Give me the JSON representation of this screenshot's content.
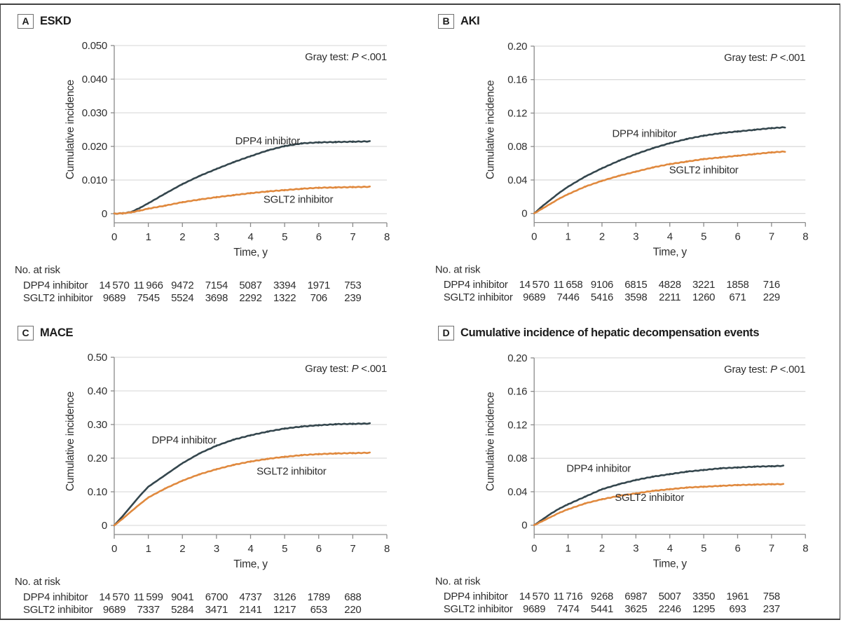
{
  "figure": {
    "frame_color": "#414141",
    "grid_color": "#d4d4d4",
    "axis_color": "#8a8a8a",
    "text_color": "#2e2e2e",
    "dpp4_color": "#34464d",
    "sglt2_color": "#e0893e"
  },
  "chart_data": [
    {
      "type": "line",
      "label": "A",
      "title": "ESKD",
      "annotation": {
        "lead": "Gray test: ",
        "italic": "P",
        "tail": " <.001"
      },
      "x_axis": {
        "label": "Time, y",
        "min": 0,
        "max": 8,
        "ticks": [
          "0",
          "1",
          "2",
          "3",
          "4",
          "5",
          "6",
          "7",
          "8"
        ]
      },
      "y_axis": {
        "label": "Cumulative incidence",
        "min": 0,
        "max": 0.05,
        "tick_labels": [
          "0",
          "0.010",
          "0.020",
          "0.030",
          "0.040",
          "0.050"
        ]
      },
      "series": [
        {
          "name": "DPP4 inhibitor",
          "color": "#34464d",
          "label_t": 4.5,
          "label_v": 0.0206,
          "t": [
            0,
            0.25,
            0.5,
            0.75,
            1,
            1.5,
            2,
            2.5,
            3,
            3.5,
            4,
            4.5,
            5,
            5.5,
            6,
            6.5,
            7,
            7.5
          ],
          "v": [
            0,
            0.0001,
            0.0005,
            0.0017,
            0.0031,
            0.006,
            0.0088,
            0.0112,
            0.0133,
            0.0153,
            0.0171,
            0.0188,
            0.0201,
            0.0209,
            0.0212,
            0.0213,
            0.0214,
            0.0215
          ]
        },
        {
          "name": "SGLT2 inhibitor",
          "color": "#e0893e",
          "label_t": 5.4,
          "label_v": 0.0032,
          "t": [
            0,
            0.25,
            0.5,
            0.75,
            1,
            1.5,
            2,
            2.5,
            3,
            3.5,
            4,
            4.5,
            5,
            5.5,
            6,
            6.5,
            7,
            7.5
          ],
          "v": [
            0,
            0.0001,
            0.0004,
            0.0009,
            0.0015,
            0.0024,
            0.0034,
            0.0042,
            0.0049,
            0.0055,
            0.0061,
            0.0066,
            0.007,
            0.0074,
            0.0077,
            0.0078,
            0.0079,
            0.008
          ]
        }
      ],
      "at_risk": {
        "title": "No. at risk",
        "rows": [
          {
            "label": "DPP4 inhibitor",
            "values": [
              "14 570",
              "11 966",
              "9472",
              "7154",
              "5087",
              "3394",
              "1971",
              "753"
            ]
          },
          {
            "label": "SGLT2 inhibitor",
            "values": [
              "9689",
              "7545",
              "5524",
              "3698",
              "2292",
              "1322",
              "706",
              "239"
            ]
          }
        ]
      }
    },
    {
      "type": "line",
      "label": "B",
      "title": "AKI",
      "annotation": {
        "lead": "Gray test: ",
        "italic": "P",
        "tail": " <.001"
      },
      "x_axis": {
        "label": "Time, y",
        "min": 0,
        "max": 8,
        "ticks": [
          "0",
          "1",
          "2",
          "3",
          "4",
          "5",
          "6",
          "7",
          "8"
        ]
      },
      "y_axis": {
        "label": "Cumulative incidence",
        "min": 0,
        "max": 0.2,
        "tick_labels": [
          "0",
          "0.04",
          "0.08",
          "0.12",
          "0.16",
          "0.20"
        ]
      },
      "series": [
        {
          "name": "DPP4 inhibitor",
          "color": "#34464d",
          "label_t": 3.25,
          "label_v": 0.0915,
          "t": [
            0,
            0.25,
            0.5,
            0.75,
            1,
            1.5,
            2,
            2.5,
            3,
            3.5,
            4,
            4.5,
            5,
            5.5,
            6,
            6.5,
            7,
            7.4
          ],
          "v": [
            0,
            0.009,
            0.017,
            0.025,
            0.032,
            0.044,
            0.054,
            0.063,
            0.071,
            0.078,
            0.084,
            0.089,
            0.093,
            0.096,
            0.098,
            0.1,
            0.102,
            0.103
          ]
        },
        {
          "name": "SGLT2 inhibitor",
          "color": "#e0893e",
          "label_t": 5.0,
          "label_v": 0.048,
          "t": [
            0,
            0.25,
            0.5,
            0.75,
            1,
            1.5,
            2,
            2.5,
            3,
            3.5,
            4,
            4.5,
            5,
            5.5,
            6,
            6.5,
            7,
            7.4
          ],
          "v": [
            0,
            0.006,
            0.012,
            0.018,
            0.023,
            0.032,
            0.039,
            0.045,
            0.05,
            0.055,
            0.059,
            0.062,
            0.065,
            0.067,
            0.069,
            0.071,
            0.073,
            0.074
          ]
        }
      ],
      "at_risk": {
        "title": "No. at risk",
        "rows": [
          {
            "label": "DPP4 inhibitor",
            "values": [
              "14 570",
              "11 658",
              "9106",
              "6815",
              "4828",
              "3221",
              "1858",
              "716"
            ]
          },
          {
            "label": "SGLT2 inhibitor",
            "values": [
              "9689",
              "7446",
              "5416",
              "3598",
              "2211",
              "1260",
              "671",
              "229"
            ]
          }
        ]
      }
    },
    {
      "type": "line",
      "label": "C",
      "title": "MACE",
      "annotation": {
        "lead": "Gray test: ",
        "italic": "P",
        "tail": " <.001"
      },
      "x_axis": {
        "label": "Time, y",
        "min": 0,
        "max": 8,
        "ticks": [
          "0",
          "1",
          "2",
          "3",
          "4",
          "5",
          "6",
          "7",
          "8"
        ]
      },
      "y_axis": {
        "label": "Cumulative incidence",
        "min": 0,
        "max": 0.5,
        "tick_labels": [
          "0",
          "0.10",
          "0.20",
          "0.30",
          "0.40",
          "0.50"
        ]
      },
      "series": [
        {
          "name": "DPP4 inhibitor",
          "color": "#34464d",
          "label_t": 2.05,
          "label_v": 0.244,
          "t": [
            0,
            0.25,
            0.5,
            0.75,
            1,
            1.5,
            2,
            2.5,
            3,
            3.5,
            4,
            4.5,
            5,
            5.5,
            6,
            6.5,
            7,
            7.5
          ],
          "v": [
            0,
            0.028,
            0.058,
            0.088,
            0.115,
            0.15,
            0.185,
            0.214,
            0.237,
            0.255,
            0.268,
            0.279,
            0.288,
            0.294,
            0.298,
            0.301,
            0.302,
            0.303
          ]
        },
        {
          "name": "SGLT2 inhibitor",
          "color": "#e0893e",
          "label_t": 5.2,
          "label_v": 0.151,
          "t": [
            0,
            0.25,
            0.5,
            0.75,
            1,
            1.5,
            2,
            2.5,
            3,
            3.5,
            4,
            4.5,
            5,
            5.5,
            6,
            6.5,
            7,
            7.5
          ],
          "v": [
            0,
            0.02,
            0.042,
            0.063,
            0.083,
            0.11,
            0.133,
            0.152,
            0.167,
            0.18,
            0.19,
            0.198,
            0.204,
            0.209,
            0.212,
            0.214,
            0.215,
            0.216
          ]
        }
      ],
      "at_risk": {
        "title": "No. at risk",
        "rows": [
          {
            "label": "DPP4 inhibitor",
            "values": [
              "14 570",
              "11 599",
              "9041",
              "6700",
              "4737",
              "3126",
              "1789",
              "688"
            ]
          },
          {
            "label": "SGLT2 inhibitor",
            "values": [
              "9689",
              "7337",
              "5284",
              "3471",
              "2141",
              "1217",
              "653",
              "220"
            ]
          }
        ]
      }
    },
    {
      "type": "line",
      "label": "D",
      "title": "Cumulative incidence of hepatic decompensation events",
      "annotation": {
        "lead": "Gray test: ",
        "italic": "P",
        "tail": " <.001"
      },
      "x_axis": {
        "label": "Time, y",
        "min": 0,
        "max": 8,
        "ticks": [
          "0",
          "1",
          "2",
          "3",
          "4",
          "5",
          "6",
          "7",
          "8"
        ]
      },
      "y_axis": {
        "label": "Cumulative incidence",
        "min": 0,
        "max": 0.2,
        "tick_labels": [
          "0",
          "0.04",
          "0.08",
          "0.12",
          "0.16",
          "0.20"
        ]
      },
      "series": [
        {
          "name": "DPP4 inhibitor",
          "color": "#34464d",
          "label_t": 1.9,
          "label_v": 0.064,
          "t": [
            0,
            0.25,
            0.5,
            0.75,
            1,
            1.5,
            2,
            2.5,
            3,
            3.5,
            4,
            4.5,
            5,
            5.5,
            6,
            6.5,
            7,
            7.35
          ],
          "v": [
            0,
            0.007,
            0.014,
            0.02,
            0.025,
            0.034,
            0.043,
            0.049,
            0.054,
            0.058,
            0.061,
            0.064,
            0.066,
            0.068,
            0.069,
            0.07,
            0.0705,
            0.071
          ]
        },
        {
          "name": "SGLT2 inhibitor",
          "color": "#e0893e",
          "label_t": 3.4,
          "label_v": 0.029,
          "t": [
            0,
            0.25,
            0.5,
            0.75,
            1,
            1.5,
            2,
            2.5,
            3,
            3.5,
            4,
            4.5,
            5,
            5.5,
            6,
            6.5,
            7,
            7.35
          ],
          "v": [
            0,
            0.005,
            0.01,
            0.015,
            0.019,
            0.026,
            0.031,
            0.035,
            0.038,
            0.041,
            0.043,
            0.045,
            0.046,
            0.047,
            0.048,
            0.0485,
            0.049,
            0.049
          ]
        }
      ],
      "at_risk": {
        "title": "No. at risk",
        "rows": [
          {
            "label": "DPP4 inhibitor",
            "values": [
              "14 570",
              "11 716",
              "9268",
              "6987",
              "5007",
              "3350",
              "1961",
              "758"
            ]
          },
          {
            "label": "SGLT2 inhibitor",
            "values": [
              "9689",
              "7474",
              "5441",
              "3625",
              "2246",
              "1295",
              "693",
              "237"
            ]
          }
        ]
      }
    }
  ]
}
